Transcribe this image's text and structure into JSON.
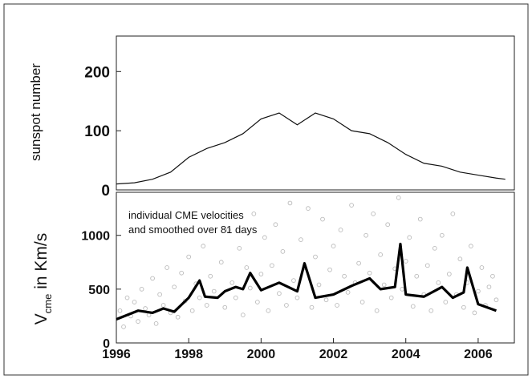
{
  "chart_data": [
    {
      "type": "line",
      "ylabel": "sunspot number",
      "xlim": [
        1996,
        2007
      ],
      "ylim": [
        0,
        260
      ],
      "yticks": [
        0,
        100,
        200
      ],
      "grid": false,
      "series": [
        {
          "x": [
            1996.0,
            1996.5,
            1997.0,
            1997.5,
            1998.0,
            1998.5,
            1999.0,
            1999.5,
            2000.0,
            2000.5,
            2001.0,
            2001.5,
            2002.0,
            2002.5,
            2003.0,
            2003.5,
            2004.0,
            2004.5,
            2005.0,
            2005.5,
            2006.0,
            2006.5,
            2006.75
          ],
          "values": [
            10,
            12,
            18,
            30,
            55,
            70,
            80,
            95,
            120,
            130,
            110,
            130,
            120,
            100,
            95,
            80,
            60,
            45,
            40,
            30,
            25,
            20,
            18
          ]
        }
      ]
    },
    {
      "type": "scatter",
      "ylabel_main": "V",
      "ylabel_sub": "cme",
      "ylabel_rest": " in Km/s",
      "xlim": [
        1996,
        2007
      ],
      "ylim": [
        0,
        1400
      ],
      "yticks": [
        0,
        500,
        1000
      ],
      "xticks": [
        1996,
        1998,
        2000,
        2002,
        2004,
        2006
      ],
      "annotation": [
        "individual CME velocities",
        "and smoothed over 81 days"
      ],
      "grid": false,
      "series": [
        {
          "mark": "line",
          "x": [
            1996.0,
            1996.3,
            1996.6,
            1997.0,
            1997.3,
            1997.6,
            1998.0,
            1998.3,
            1998.45,
            1998.8,
            1999.0,
            1999.3,
            1999.5,
            1999.7,
            2000.0,
            2000.5,
            2001.0,
            2001.2,
            2001.5,
            2002.0,
            2002.5,
            2003.0,
            2003.3,
            2003.7,
            2003.85,
            2004.0,
            2004.5,
            2005.0,
            2005.3,
            2005.6,
            2005.7,
            2006.0,
            2006.5
          ],
          "values": [
            220,
            260,
            300,
            280,
            320,
            290,
            420,
            580,
            430,
            420,
            480,
            520,
            500,
            650,
            490,
            560,
            480,
            740,
            420,
            450,
            530,
            600,
            500,
            520,
            920,
            450,
            430,
            520,
            420,
            470,
            700,
            360,
            300
          ]
        },
        {
          "mark": "points",
          "color": "#bbbbbb",
          "x": [
            1996.1,
            1996.2,
            1996.3,
            1996.4,
            1996.5,
            1996.6,
            1996.7,
            1996.8,
            1996.9,
            1997.0,
            1997.1,
            1997.2,
            1997.3,
            1997.4,
            1997.5,
            1997.6,
            1997.7,
            1997.8,
            1997.9,
            1998.0,
            1998.1,
            1998.2,
            1998.3,
            1998.4,
            1998.5,
            1998.6,
            1998.7,
            1998.9,
            1999.0,
            1999.1,
            1999.2,
            1999.3,
            1999.4,
            1999.5,
            1999.6,
            1999.7,
            1999.8,
            1999.9,
            2000.0,
            2000.1,
            2000.2,
            2000.3,
            2000.4,
            2000.5,
            2000.6,
            2000.7,
            2000.8,
            2000.9,
            2001.0,
            2001.1,
            2001.2,
            2001.3,
            2001.4,
            2001.5,
            2001.6,
            2001.7,
            2001.8,
            2001.9,
            2002.0,
            2002.1,
            2002.2,
            2002.3,
            2002.4,
            2002.5,
            2002.6,
            2002.7,
            2002.8,
            2002.9,
            2003.0,
            2003.1,
            2003.2,
            2003.3,
            2003.4,
            2003.5,
            2003.6,
            2003.7,
            2003.8,
            2003.9,
            2004.0,
            2004.1,
            2004.2,
            2004.3,
            2004.4,
            2004.5,
            2004.6,
            2004.7,
            2004.8,
            2004.9,
            2005.0,
            2005.1,
            2005.2,
            2005.3,
            2005.4,
            2005.5,
            2005.6,
            2005.7,
            2005.8,
            2005.9,
            2006.0,
            2006.1,
            2006.2,
            2006.3,
            2006.4,
            2006.5
          ],
          "values": [
            300,
            150,
            420,
            250,
            380,
            200,
            500,
            320,
            260,
            600,
            180,
            450,
            350,
            700,
            280,
            520,
            240,
            650,
            390,
            800,
            300,
            550,
            420,
            900,
            350,
            620,
            480,
            750,
            330,
            1050,
            560,
            420,
            880,
            260,
            700,
            510,
            1200,
            380,
            640,
            980,
            300,
            720,
            1100,
            460,
            850,
            350,
            1300,
            580,
            420,
            960,
            700,
            1250,
            330,
            800,
            540,
            1150,
            400,
            680,
            900,
            350,
            1050,
            620,
            470,
            1280,
            560,
            740,
            380,
            1000,
            650,
            1200,
            300,
            820,
            540,
            1100,
            420,
            690,
            1350,
            500,
            760,
            980,
            340,
            620,
            1150,
            450,
            720,
            300,
            880,
            560,
            1000,
            380,
            640,
            1200,
            450,
            780,
            330,
            560,
            900,
            280,
            480,
            700,
            350,
            520,
            620,
            400
          ]
        }
      ]
    }
  ]
}
